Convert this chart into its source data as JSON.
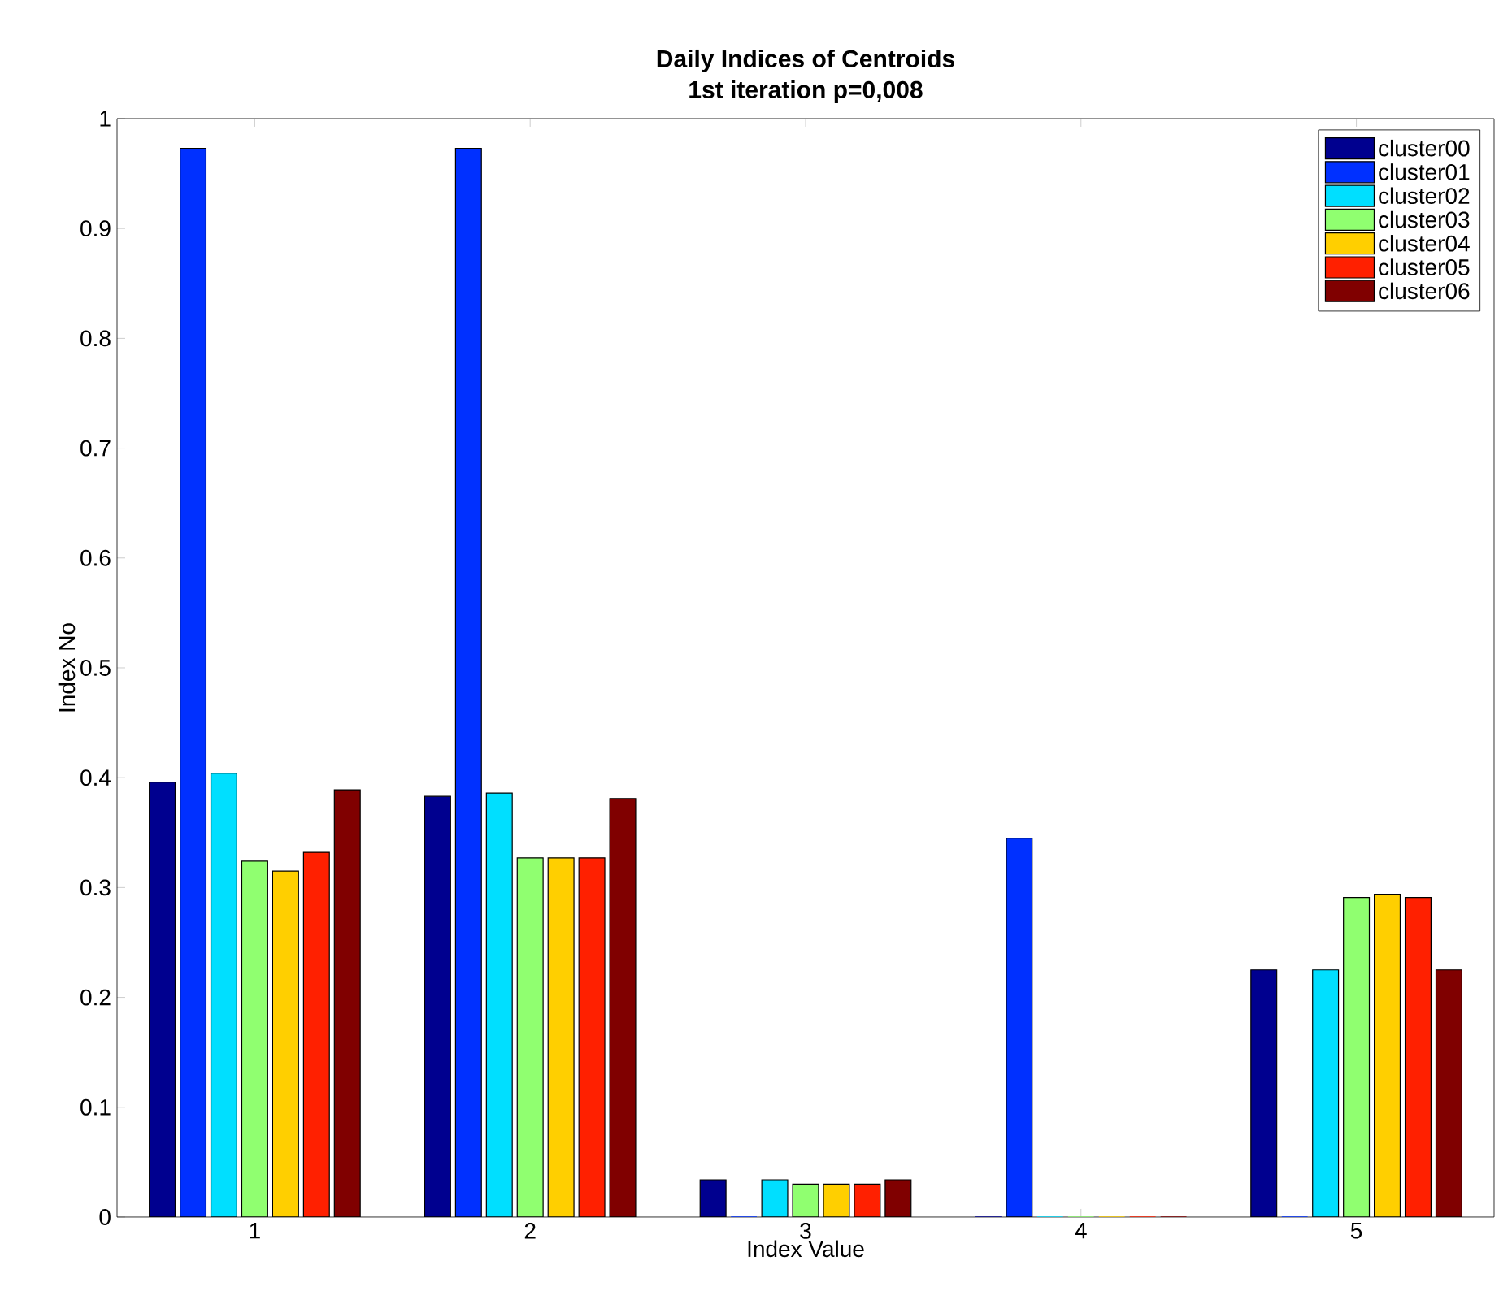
{
  "chart_data": {
    "type": "bar",
    "title": "Daily Indices of Centroids",
    "subtitle": "1st iteration p=0,008",
    "xlabel": "Index Value",
    "ylabel": "Index No",
    "categories": [
      "1",
      "2",
      "3",
      "4",
      "5"
    ],
    "series": [
      {
        "name": "cluster00",
        "color": "#00008f",
        "values": [
          0.396,
          0.383,
          0.034,
          0,
          0.225
        ]
      },
      {
        "name": "cluster01",
        "color": "#0030ff",
        "values": [
          0.973,
          0.973,
          0,
          0.345,
          0
        ]
      },
      {
        "name": "cluster02",
        "color": "#00dfff",
        "values": [
          0.404,
          0.386,
          0.034,
          0,
          0.225
        ]
      },
      {
        "name": "cluster03",
        "color": "#90ff70",
        "values": [
          0.324,
          0.327,
          0.03,
          0,
          0.291
        ]
      },
      {
        "name": "cluster04",
        "color": "#ffcf00",
        "values": [
          0.315,
          0.327,
          0.03,
          0,
          0.294
        ]
      },
      {
        "name": "cluster05",
        "color": "#ff2000",
        "values": [
          0.332,
          0.327,
          0.03,
          0,
          0.291
        ]
      },
      {
        "name": "cluster06",
        "color": "#800000",
        "values": [
          0.389,
          0.381,
          0.034,
          0,
          0.225
        ]
      }
    ],
    "ylim": [
      0,
      1
    ],
    "yticks": [
      0,
      0.1,
      0.2,
      0.3,
      0.4,
      0.5,
      0.6,
      0.7,
      0.8,
      0.9,
      1
    ],
    "legend": "top right"
  }
}
